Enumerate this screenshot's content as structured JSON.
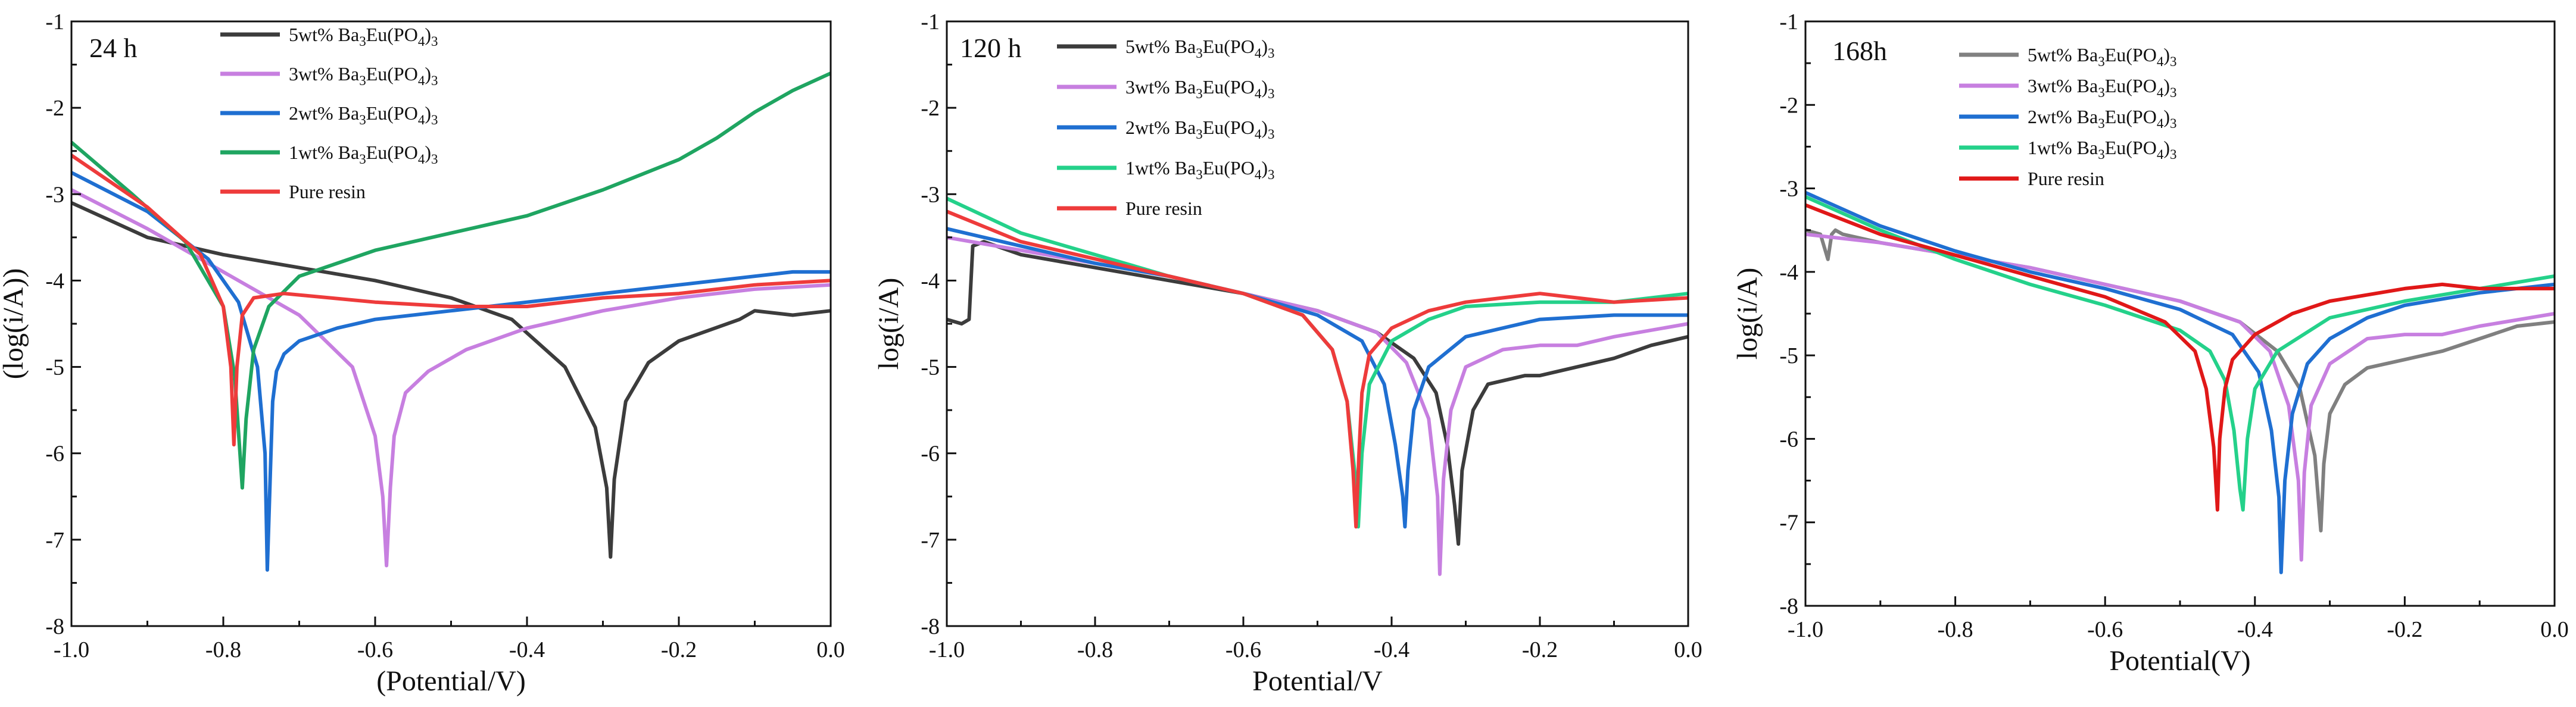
{
  "chart_data": [
    {
      "type": "line",
      "title": "24 h",
      "xlabel": "(Potential/V)",
      "ylabel": "(log(i/A))",
      "xlim": [
        -1.0,
        0.0
      ],
      "ylim": [
        -8,
        -1
      ],
      "xticks": [
        "-1.0",
        "-0.8",
        "-0.6",
        "-0.4",
        "-0.2",
        "0.0"
      ],
      "yticks": [
        "-8",
        "-7",
        "-6",
        "-5",
        "-4",
        "-3",
        "-2",
        "-1"
      ],
      "legend_position": "top-center",
      "series": [
        {
          "name": "5wt% Ba3Eu(PO4)3",
          "color": "#3c3c3c",
          "x": [
            -1.0,
            -0.9,
            -0.8,
            -0.7,
            -0.6,
            -0.5,
            -0.42,
            -0.35,
            -0.31,
            -0.295,
            -0.29,
            -0.285,
            -0.27,
            -0.24,
            -0.2,
            -0.12,
            -0.1,
            -0.05,
            0.0
          ],
          "y": [
            -3.1,
            -3.5,
            -3.7,
            -3.85,
            -4.0,
            -4.2,
            -4.45,
            -5.0,
            -5.7,
            -6.4,
            -7.2,
            -6.3,
            -5.4,
            -4.95,
            -4.7,
            -4.45,
            -4.35,
            -4.4,
            -4.35
          ]
        },
        {
          "name": "3wt% Ba3Eu(PO4)3",
          "color": "#c77fe0",
          "x": [
            -1.0,
            -0.9,
            -0.8,
            -0.7,
            -0.63,
            -0.6,
            -0.59,
            -0.585,
            -0.58,
            -0.575,
            -0.56,
            -0.53,
            -0.48,
            -0.4,
            -0.3,
            -0.2,
            -0.1,
            0.0
          ],
          "y": [
            -2.95,
            -3.4,
            -3.9,
            -4.4,
            -5.0,
            -5.8,
            -6.5,
            -7.3,
            -6.4,
            -5.8,
            -5.3,
            -5.05,
            -4.8,
            -4.55,
            -4.35,
            -4.2,
            -4.1,
            -4.05
          ]
        },
        {
          "name": "2wt% Ba3Eu(PO4)3",
          "color": "#1f6fd1",
          "x": [
            -1.0,
            -0.9,
            -0.82,
            -0.78,
            -0.755,
            -0.745,
            -0.742,
            -0.738,
            -0.735,
            -0.73,
            -0.72,
            -0.7,
            -0.65,
            -0.6,
            -0.5,
            -0.4,
            -0.2,
            -0.05,
            0.0
          ],
          "y": [
            -2.75,
            -3.2,
            -3.75,
            -4.25,
            -5.0,
            -6.0,
            -7.35,
            -6.2,
            -5.4,
            -5.05,
            -4.85,
            -4.7,
            -4.55,
            -4.45,
            -4.35,
            -4.25,
            -4.05,
            -3.9,
            -3.9
          ]
        },
        {
          "name": "1wt% Ba3Eu(PO4)3",
          "color": "#1fa561",
          "x": [
            -1.0,
            -0.92,
            -0.85,
            -0.8,
            -0.785,
            -0.778,
            -0.775,
            -0.77,
            -0.76,
            -0.74,
            -0.7,
            -0.6,
            -0.5,
            -0.4,
            -0.3,
            -0.2,
            -0.15,
            -0.1,
            -0.05,
            0.0
          ],
          "y": [
            -2.4,
            -3.0,
            -3.55,
            -4.3,
            -5.1,
            -6.0,
            -6.4,
            -5.6,
            -4.8,
            -4.3,
            -3.95,
            -3.65,
            -3.45,
            -3.25,
            -2.95,
            -2.6,
            -2.35,
            -2.05,
            -1.8,
            -1.6
          ]
        },
        {
          "name": "Pure resin",
          "color": "#ee3b3b",
          "x": [
            -1.0,
            -0.9,
            -0.83,
            -0.8,
            -0.79,
            -0.786,
            -0.782,
            -0.775,
            -0.76,
            -0.72,
            -0.6,
            -0.5,
            -0.4,
            -0.3,
            -0.2,
            -0.1,
            0.0
          ],
          "y": [
            -2.55,
            -3.15,
            -3.7,
            -4.3,
            -5.0,
            -5.9,
            -5.0,
            -4.4,
            -4.2,
            -4.15,
            -4.25,
            -4.3,
            -4.3,
            -4.2,
            -4.15,
            -4.05,
            -4.0
          ]
        }
      ]
    },
    {
      "type": "line",
      "title": "120 h",
      "xlabel": "Potential/V",
      "ylabel": "log(i/A)",
      "xlim": [
        -1.0,
        0.0
      ],
      "ylim": [
        -8,
        -1
      ],
      "xticks": [
        "-1.0",
        "-0.8",
        "-0.6",
        "-0.4",
        "-0.2",
        "0.0"
      ],
      "yticks": [
        "-8",
        "-7",
        "-6",
        "-5",
        "-4",
        "-3",
        "-2",
        "-1"
      ],
      "legend_position": "top-center",
      "series": [
        {
          "name": "5wt% Ba3Eu(PO4)3",
          "color": "#3c3c3c",
          "x": [
            -1.0,
            -0.98,
            -0.97,
            -0.965,
            -0.95,
            -0.9,
            -0.8,
            -0.7,
            -0.6,
            -0.5,
            -0.42,
            -0.37,
            -0.34,
            -0.325,
            -0.315,
            -0.31,
            -0.305,
            -0.29,
            -0.27,
            -0.22,
            -0.2,
            -0.15,
            -0.1,
            -0.05,
            0.0
          ],
          "y": [
            -4.45,
            -4.5,
            -4.45,
            -3.6,
            -3.55,
            -3.7,
            -3.85,
            -4.0,
            -4.15,
            -4.35,
            -4.6,
            -4.9,
            -5.3,
            -5.9,
            -6.6,
            -7.05,
            -6.2,
            -5.5,
            -5.2,
            -5.1,
            -5.1,
            -5.0,
            -4.9,
            -4.75,
            -4.65
          ]
        },
        {
          "name": "3wt% Ba3Eu(PO4)3",
          "color": "#c77fe0",
          "x": [
            -1.0,
            -0.9,
            -0.8,
            -0.7,
            -0.6,
            -0.5,
            -0.42,
            -0.38,
            -0.35,
            -0.338,
            -0.335,
            -0.33,
            -0.32,
            -0.3,
            -0.25,
            -0.2,
            -0.15,
            -0.1,
            0.0
          ],
          "y": [
            -3.5,
            -3.65,
            -3.8,
            -3.95,
            -4.15,
            -4.35,
            -4.6,
            -4.95,
            -5.6,
            -6.5,
            -7.4,
            -6.3,
            -5.5,
            -5.0,
            -4.8,
            -4.75,
            -4.75,
            -4.65,
            -4.5
          ]
        },
        {
          "name": "2wt% Ba3Eu(PO4)3",
          "color": "#1f6fd1",
          "x": [
            -1.0,
            -0.9,
            -0.8,
            -0.7,
            -0.6,
            -0.5,
            -0.44,
            -0.41,
            -0.395,
            -0.385,
            -0.382,
            -0.378,
            -0.37,
            -0.35,
            -0.3,
            -0.2,
            -0.1,
            0.0
          ],
          "y": [
            -3.4,
            -3.6,
            -3.8,
            -3.95,
            -4.15,
            -4.4,
            -4.7,
            -5.2,
            -5.9,
            -6.5,
            -6.85,
            -6.2,
            -5.5,
            -5.0,
            -4.65,
            -4.45,
            -4.4,
            -4.4
          ]
        },
        {
          "name": "1wt% Ba3Eu(PO4)3",
          "color": "#24d18a",
          "x": [
            -1.0,
            -0.9,
            -0.8,
            -0.7,
            -0.6,
            -0.52,
            -0.48,
            -0.46,
            -0.45,
            -0.445,
            -0.44,
            -0.43,
            -0.4,
            -0.35,
            -0.3,
            -0.2,
            -0.1,
            0.0
          ],
          "y": [
            -3.05,
            -3.45,
            -3.7,
            -3.95,
            -4.15,
            -4.4,
            -4.8,
            -5.4,
            -6.2,
            -6.85,
            -6.0,
            -5.2,
            -4.7,
            -4.45,
            -4.3,
            -4.25,
            -4.25,
            -4.15
          ]
        },
        {
          "name": "Pure resin",
          "color": "#ee3b3b",
          "x": [
            -1.0,
            -0.9,
            -0.8,
            -0.7,
            -0.6,
            -0.52,
            -0.48,
            -0.46,
            -0.452,
            -0.448,
            -0.444,
            -0.44,
            -0.43,
            -0.4,
            -0.35,
            -0.3,
            -0.2,
            -0.15,
            -0.1,
            0.0
          ],
          "y": [
            -3.2,
            -3.55,
            -3.75,
            -3.95,
            -4.15,
            -4.4,
            -4.8,
            -5.4,
            -6.2,
            -6.85,
            -6.0,
            -5.3,
            -4.85,
            -4.55,
            -4.35,
            -4.25,
            -4.15,
            -4.2,
            -4.25,
            -4.2
          ]
        }
      ]
    },
    {
      "type": "line",
      "title": "168h",
      "xlabel": "Potential(V)",
      "ylabel": "log(i/A)",
      "xlim": [
        -1.0,
        0.0
      ],
      "ylim": [
        -8,
        -1
      ],
      "xticks": [
        "-1.0",
        "-0.8",
        "-0.6",
        "-0.4",
        "-0.2",
        "0.0"
      ],
      "yticks": [
        "-8",
        "-7",
        "-6",
        "-5",
        "-4",
        "-3",
        "-2",
        "-1"
      ],
      "legend_position": "top-center",
      "series": [
        {
          "name": "5wt% Ba3Eu(PO4)3",
          "color": "#808080",
          "x": [
            -1.0,
            -0.98,
            -0.97,
            -0.965,
            -0.96,
            -0.95,
            -0.9,
            -0.8,
            -0.7,
            -0.6,
            -0.5,
            -0.42,
            -0.37,
            -0.34,
            -0.32,
            -0.312,
            -0.308,
            -0.3,
            -0.28,
            -0.25,
            -0.2,
            -0.15,
            -0.1,
            -0.05,
            0.0
          ],
          "y": [
            -3.5,
            -3.55,
            -3.85,
            -3.55,
            -3.5,
            -3.55,
            -3.65,
            -3.8,
            -3.95,
            -4.15,
            -4.35,
            -4.6,
            -4.95,
            -5.4,
            -6.2,
            -7.1,
            -6.3,
            -5.7,
            -5.35,
            -5.15,
            -5.05,
            -4.95,
            -4.8,
            -4.65,
            -4.6
          ]
        },
        {
          "name": "3wt% Ba3Eu(PO4)3",
          "color": "#c77fe0",
          "x": [
            -1.0,
            -0.9,
            -0.8,
            -0.7,
            -0.6,
            -0.5,
            -0.42,
            -0.38,
            -0.355,
            -0.342,
            -0.338,
            -0.334,
            -0.325,
            -0.3,
            -0.25,
            -0.2,
            -0.15,
            -0.1,
            0.0
          ],
          "y": [
            -3.55,
            -3.65,
            -3.8,
            -3.95,
            -4.15,
            -4.35,
            -4.6,
            -4.95,
            -5.6,
            -6.5,
            -7.45,
            -6.4,
            -5.6,
            -5.1,
            -4.8,
            -4.75,
            -4.75,
            -4.65,
            -4.5
          ]
        },
        {
          "name": "2wt% Ba3Eu(PO4)3",
          "color": "#1f6fd1",
          "x": [
            -1.0,
            -0.9,
            -0.8,
            -0.7,
            -0.6,
            -0.5,
            -0.43,
            -0.395,
            -0.378,
            -0.368,
            -0.365,
            -0.36,
            -0.35,
            -0.33,
            -0.3,
            -0.25,
            -0.2,
            -0.1,
            0.0
          ],
          "y": [
            -3.05,
            -3.45,
            -3.75,
            -4.0,
            -4.2,
            -4.45,
            -4.75,
            -5.2,
            -5.9,
            -6.7,
            -7.6,
            -6.5,
            -5.7,
            -5.1,
            -4.8,
            -4.55,
            -4.4,
            -4.25,
            -4.15
          ]
        },
        {
          "name": "1wt% Ba3Eu(PO4)3",
          "color": "#24d18a",
          "x": [
            -1.0,
            -0.9,
            -0.8,
            -0.7,
            -0.6,
            -0.5,
            -0.46,
            -0.44,
            -0.428,
            -0.42,
            -0.416,
            -0.41,
            -0.4,
            -0.37,
            -0.3,
            -0.2,
            -0.1,
            0.0
          ],
          "y": [
            -3.1,
            -3.5,
            -3.85,
            -4.15,
            -4.4,
            -4.7,
            -4.95,
            -5.3,
            -5.9,
            -6.6,
            -6.85,
            -6.0,
            -5.4,
            -4.95,
            -4.55,
            -4.35,
            -4.2,
            -4.05
          ]
        },
        {
          "name": "Pure resin",
          "color": "#e01818",
          "x": [
            -1.0,
            -0.9,
            -0.8,
            -0.7,
            -0.6,
            -0.52,
            -0.48,
            -0.465,
            -0.455,
            -0.45,
            -0.447,
            -0.44,
            -0.43,
            -0.4,
            -0.35,
            -0.3,
            -0.2,
            -0.15,
            -0.1,
            0.0
          ],
          "y": [
            -3.2,
            -3.55,
            -3.8,
            -4.05,
            -4.3,
            -4.6,
            -4.95,
            -5.4,
            -6.1,
            -6.85,
            -6.0,
            -5.4,
            -5.05,
            -4.75,
            -4.5,
            -4.35,
            -4.2,
            -4.15,
            -4.2,
            -4.2
          ]
        }
      ]
    }
  ]
}
